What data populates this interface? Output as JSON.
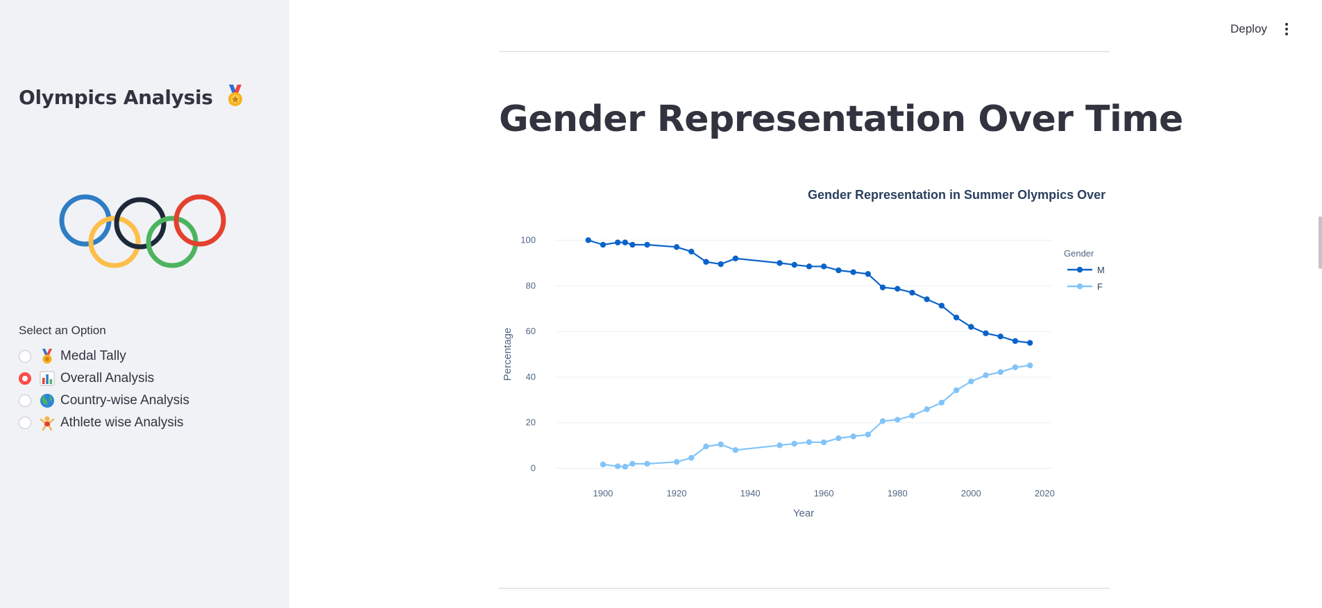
{
  "sidebar": {
    "app_title": "Olympics Analysis",
    "title_icon": "medal-icon",
    "radio_label": "Select an Option",
    "options": [
      {
        "label": "Medal Tally",
        "icon": "medal-icon",
        "selected": false
      },
      {
        "label": "Overall Analysis",
        "icon": "bar-chart-icon",
        "selected": true
      },
      {
        "label": "Country-wise Analysis",
        "icon": "globe-icon",
        "selected": false
      },
      {
        "label": "Athlete wise Analysis",
        "icon": "athlete-icon",
        "selected": false
      }
    ],
    "ring_colors": [
      "#2f7dc4",
      "#fcbf49",
      "#1d2939",
      "#4cb45e",
      "#e4412f"
    ]
  },
  "header": {
    "deploy_label": "Deploy",
    "menu_icon": "vertical-dots-icon"
  },
  "main": {
    "page_title": "Gender Representation Over Time"
  },
  "chart_data": {
    "type": "line",
    "title": "Gender Representation in Summer Olympics Over",
    "xlabel": "Year",
    "ylabel": "Percentage",
    "xlim": [
      1887,
      2022
    ],
    "ylim": [
      -5,
      105
    ],
    "xticks": [
      1900,
      1920,
      1940,
      1960,
      1980,
      2000,
      2020
    ],
    "yticks": [
      0,
      20,
      40,
      60,
      80,
      100
    ],
    "legend_title": "Gender",
    "legend_position": "top-right",
    "grid": true,
    "series": [
      {
        "name": "M",
        "color": "#0a63c9",
        "points": [
          [
            1896,
            100
          ],
          [
            1900,
            98
          ],
          [
            1904,
            99
          ],
          [
            1906,
            99
          ],
          [
            1908,
            98
          ],
          [
            1912,
            98
          ],
          [
            1920,
            97
          ],
          [
            1924,
            95
          ],
          [
            1928,
            90.5
          ],
          [
            1932,
            89.5
          ],
          [
            1936,
            92
          ],
          [
            1948,
            90
          ],
          [
            1952,
            89.2
          ],
          [
            1956,
            88.5
          ],
          [
            1960,
            88.5
          ],
          [
            1964,
            86.8
          ],
          [
            1968,
            86
          ],
          [
            1972,
            85.2
          ],
          [
            1976,
            79.3
          ],
          [
            1980,
            78.7
          ],
          [
            1984,
            77
          ],
          [
            1988,
            74.1
          ],
          [
            1992,
            71.3
          ],
          [
            1996,
            66.1
          ],
          [
            2000,
            62
          ],
          [
            2004,
            59.2
          ],
          [
            2008,
            57.8
          ],
          [
            2012,
            55.8
          ],
          [
            2016,
            55
          ]
        ]
      },
      {
        "name": "F",
        "color": "#82c4f8",
        "points": [
          [
            1900,
            1.7
          ],
          [
            1904,
            0.9
          ],
          [
            1906,
            0.7
          ],
          [
            1908,
            2
          ],
          [
            1912,
            2
          ],
          [
            1920,
            2.8
          ],
          [
            1924,
            4.6
          ],
          [
            1928,
            9.6
          ],
          [
            1932,
            10.5
          ],
          [
            1936,
            8
          ],
          [
            1948,
            10.1
          ],
          [
            1952,
            10.8
          ],
          [
            1956,
            11.5
          ],
          [
            1960,
            11.4
          ],
          [
            1964,
            13.2
          ],
          [
            1968,
            14
          ],
          [
            1972,
            14.8
          ],
          [
            1976,
            20.7
          ],
          [
            1980,
            21.3
          ],
          [
            1984,
            23.1
          ],
          [
            1988,
            25.9
          ],
          [
            1992,
            28.8
          ],
          [
            1996,
            34.2
          ],
          [
            2000,
            38.1
          ],
          [
            2004,
            40.8
          ],
          [
            2008,
            42.2
          ],
          [
            2012,
            44.3
          ],
          [
            2016,
            45.1
          ]
        ]
      }
    ]
  }
}
